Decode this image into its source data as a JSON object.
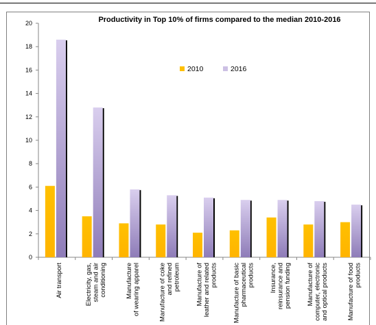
{
  "chart_data": {
    "type": "bar",
    "title": "Productivity in Top 10% of firms compared to the median 2010-2016",
    "xlabel": "",
    "ylabel": "",
    "ylim": [
      0,
      20
    ],
    "yticks": [
      0,
      2,
      4,
      6,
      8,
      10,
      12,
      14,
      16,
      18,
      20
    ],
    "grid": false,
    "legend_position": "upper-center",
    "categories": [
      [
        "Air transport"
      ],
      [
        "Electricity, gas,",
        "steam and air",
        "conditioning"
      ],
      [
        "Manufacture",
        "of wearing apparel"
      ],
      [
        "Manufacture of coke",
        "and refined",
        "petroleum"
      ],
      [
        "Manufacture of",
        "leather and related",
        "products"
      ],
      [
        "Manufacture of basic",
        "pharmaceutical",
        "products"
      ],
      [
        "Insurance,",
        "reinsurance and",
        "pension funding"
      ],
      [
        "Manufacture of",
        "computer, electronic",
        "and optical products"
      ],
      [
        "Manufacture of food",
        "products"
      ]
    ],
    "series": [
      {
        "name": "2010",
        "color": "#ffc000",
        "values": [
          6.1,
          3.5,
          2.9,
          2.8,
          2.1,
          2.3,
          3.4,
          2.8,
          3.0
        ]
      },
      {
        "name": "2016",
        "color": "#ccc0e4",
        "values": [
          18.6,
          12.8,
          5.8,
          5.3,
          5.1,
          4.9,
          4.9,
          4.8,
          4.5
        ]
      }
    ]
  }
}
